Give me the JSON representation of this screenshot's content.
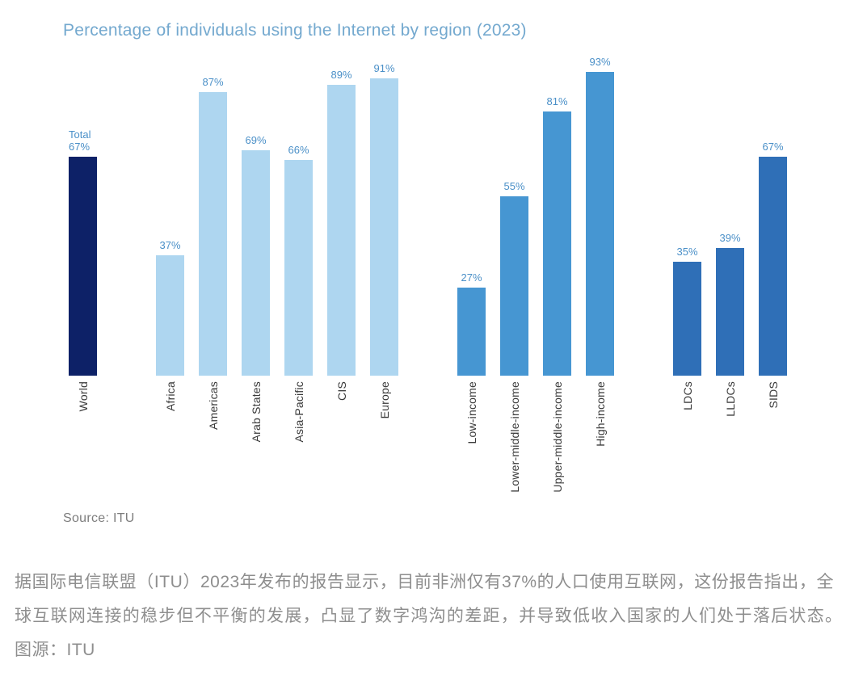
{
  "title": "Percentage of individuals using the Internet by region (2023)",
  "source": "Source: ITU",
  "caption": "据国际电信联盟（ITU）2023年发布的报告显示，目前非洲仅有37%的人口使用互联网，这份报告指出，全球互联网连接的稳步但不平衡的发展，凸显了数字鸿沟的差距，并导致低收入国家的人们处于落后状态。　图源：ITU",
  "colors": {
    "title_text": "#74a9cf",
    "value_label_text": "#4b90c8",
    "category_label_text": "#3a3a3a",
    "source_text": "#7d7d7d",
    "caption_text": "#8e8e8e",
    "world_bar": "#0d2167",
    "region_bar": "#aed6f0",
    "income_bar": "#4696d2",
    "special_bar": "#2f6fb7"
  },
  "chart_data": {
    "type": "bar",
    "title": "Percentage of individuals using the Internet by region (2023)",
    "unit": "%",
    "ylim": [
      0,
      100
    ],
    "grid": false,
    "value_labels": "above-bars",
    "category_labels": "rotated-90-bottom-to-top",
    "source": "Source: ITU",
    "groups": [
      {
        "name": "world",
        "color": "#0d2167",
        "bars": [
          {
            "label": "World",
            "value": 67,
            "annotation": "Total"
          }
        ]
      },
      {
        "name": "regions",
        "color": "#aed6f0",
        "bars": [
          {
            "label": "Africa",
            "value": 37
          },
          {
            "label": "Americas",
            "value": 87
          },
          {
            "label": "Arab States",
            "value": 69
          },
          {
            "label": "Asia-Pacific",
            "value": 66
          },
          {
            "label": "CIS",
            "value": 89
          },
          {
            "label": "Europe",
            "value": 91
          }
        ]
      },
      {
        "name": "income-groups",
        "color": "#4696d2",
        "bars": [
          {
            "label": "Low-income",
            "value": 27
          },
          {
            "label": "Lower-middle-income",
            "value": 55
          },
          {
            "label": "Upper-middle-income",
            "value": 81
          },
          {
            "label": "High-income",
            "value": 93
          }
        ]
      },
      {
        "name": "special-groups",
        "color": "#2f6fb7",
        "bars": [
          {
            "label": "LDCs",
            "value": 35
          },
          {
            "label": "LLDCs",
            "value": 39
          },
          {
            "label": "SIDS",
            "value": 67
          }
        ]
      }
    ]
  }
}
